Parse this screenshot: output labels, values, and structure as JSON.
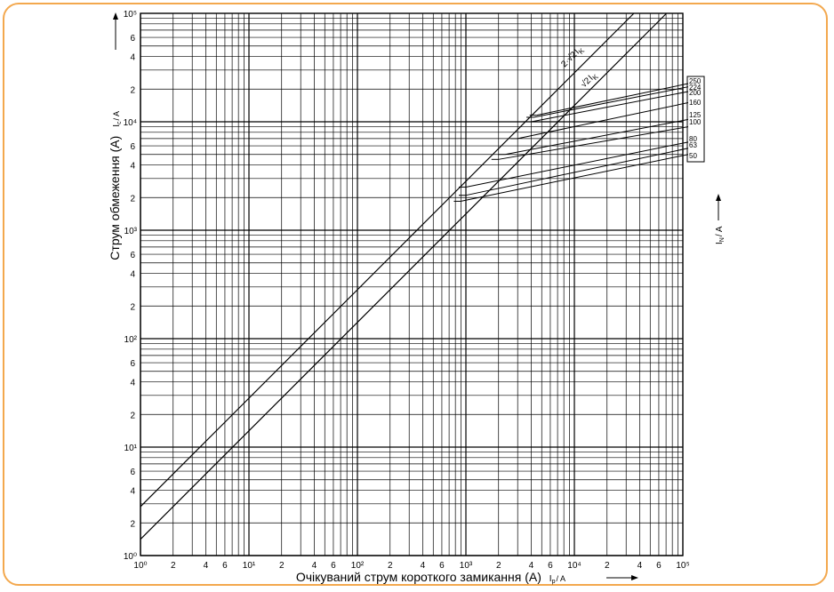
{
  "chart_data": {
    "type": "line",
    "x_scale": "log",
    "y_scale": "log",
    "xlim": [
      1,
      100000
    ],
    "ylim": [
      1,
      100000
    ],
    "grid": true,
    "xlabel": "Очікуваний струм короткого замикання (А)",
    "xlabel_symbol": "I",
    "xlabel_symbol_sub": "p",
    "xlabel_unit": "/ A",
    "ylabel": "Струм обмеження (А)",
    "ylabel_symbol": "I",
    "ylabel_symbol_sub": "c",
    "ylabel_unit": "/ A",
    "right_label": "I",
    "right_label_sub": "N",
    "right_label_unit": "/ A",
    "decade_tick_labels": [
      "10⁰",
      "10¹",
      "10²",
      "10³",
      "10⁴",
      "10⁵"
    ],
    "minor_tick_labels": [
      "2",
      "4",
      "6"
    ],
    "reference_lines": [
      {
        "name": "2·√2·I_k",
        "label_main": "2·√2",
        "label_sub": "I",
        "label_subsub": "K",
        "slope_factor": 2.828
      },
      {
        "name": "√2·I_k",
        "label_main": "√2",
        "label_sub": "I",
        "label_subsub": "K",
        "slope_factor": 1.414
      }
    ],
    "series": [
      {
        "name": "50",
        "x": [
          900,
          100000
        ],
        "y": [
          1850,
          5000
        ]
      },
      {
        "name": "63",
        "x": [
          1000,
          100000
        ],
        "y": [
          2100,
          5700
        ]
      },
      {
        "name": "80",
        "x": [
          1000,
          100000
        ],
        "y": [
          2500,
          6500
        ]
      },
      {
        "name": "100",
        "x": [
          2000,
          100000
        ],
        "y": [
          4500,
          9000
        ]
      },
      {
        "name": "125",
        "x": [
          2300,
          100000
        ],
        "y": [
          5000,
          10500
        ]
      },
      {
        "name": "160",
        "x": [
          3000,
          100000
        ],
        "y": [
          7000,
          15000
        ]
      },
      {
        "name": "200",
        "x": [
          4000,
          100000
        ],
        "y": [
          10000,
          19000
        ]
      },
      {
        "name": "224",
        "x": [
          4200,
          100000
        ],
        "y": [
          11000,
          21000
        ]
      },
      {
        "name": "250",
        "x": [
          4500,
          100000
        ],
        "y": [
          11500,
          22500
        ]
      }
    ]
  }
}
